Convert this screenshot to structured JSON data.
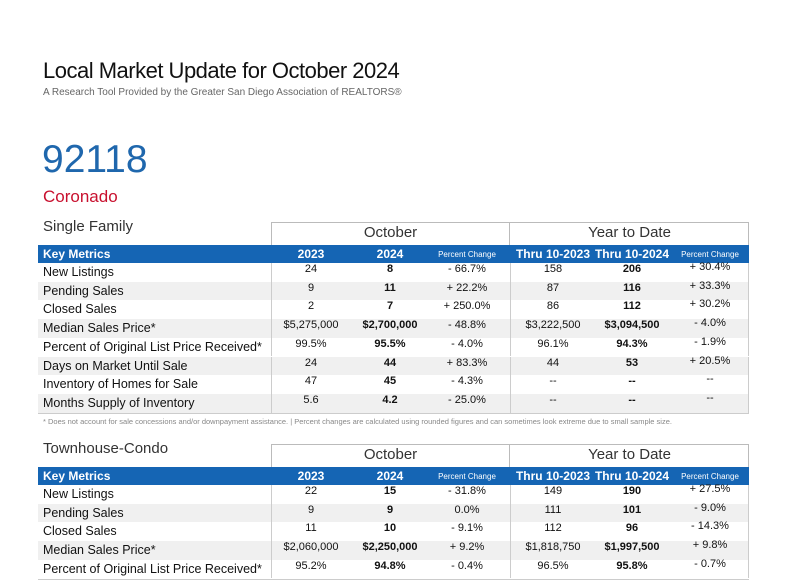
{
  "header": {
    "title": "Local Market Update for October 2024",
    "subtitle": "A Research Tool Provided by the Greater San Diego Association of REALTORS®"
  },
  "zip": "92118",
  "area": "Coronado",
  "sections": [
    {
      "title": "Single Family",
      "group_headers": [
        "October",
        "Year to Date"
      ],
      "columns": [
        "Key Metrics",
        "2023",
        "2024",
        "Percent Change",
        "Thru 10-2023",
        "Thru 10-2024",
        "Percent Change"
      ],
      "rows": [
        [
          "New Listings",
          "24",
          "8",
          "- 66.7%",
          "158",
          "206",
          "+ 30.4%"
        ],
        [
          "Pending Sales",
          "9",
          "11",
          "+ 22.2%",
          "87",
          "116",
          "+ 33.3%"
        ],
        [
          "Closed Sales",
          "2",
          "7",
          "+ 250.0%",
          "86",
          "112",
          "+ 30.2%"
        ],
        [
          "Median Sales Price*",
          "$5,275,000",
          "$2,700,000",
          "- 48.8%",
          "$3,222,500",
          "$3,094,500",
          "- 4.0%"
        ],
        [
          "Percent of Original List Price Received*",
          "99.5%",
          "95.5%",
          "- 4.0%",
          "96.1%",
          "94.3%",
          "- 1.9%"
        ],
        [
          "Days on Market Until Sale",
          "24",
          "44",
          "+ 83.3%",
          "44",
          "53",
          "+ 20.5%"
        ],
        [
          "Inventory of Homes for Sale",
          "47",
          "45",
          "- 4.3%",
          "--",
          "--",
          "--"
        ],
        [
          "Months Supply of Inventory",
          "5.6",
          "4.2",
          "- 25.0%",
          "--",
          "--",
          "--"
        ]
      ],
      "footnote": "* Does not account for sale concessions and/or downpayment assistance. | Percent changes are calculated using rounded figures and can sometimes look extreme due to small sample size."
    },
    {
      "title": "Townhouse-Condo",
      "group_headers": [
        "October",
        "Year to Date"
      ],
      "columns": [
        "Key Metrics",
        "2023",
        "2024",
        "Percent Change",
        "Thru 10-2023",
        "Thru 10-2024",
        "Percent Change"
      ],
      "rows": [
        [
          "New Listings",
          "22",
          "15",
          "- 31.8%",
          "149",
          "190",
          "+ 27.5%"
        ],
        [
          "Pending Sales",
          "9",
          "9",
          "0.0%",
          "111",
          "101",
          "- 9.0%"
        ],
        [
          "Closed Sales",
          "11",
          "10",
          "- 9.1%",
          "112",
          "96",
          "- 14.3%"
        ],
        [
          "Median Sales Price*",
          "$2,060,000",
          "$2,250,000",
          "+ 9.2%",
          "$1,818,750",
          "$1,997,500",
          "+ 9.8%"
        ],
        [
          "Percent of Original List Price Received*",
          "95.2%",
          "94.8%",
          "- 0.4%",
          "96.5%",
          "95.8%",
          "- 0.7%"
        ]
      ]
    }
  ]
}
